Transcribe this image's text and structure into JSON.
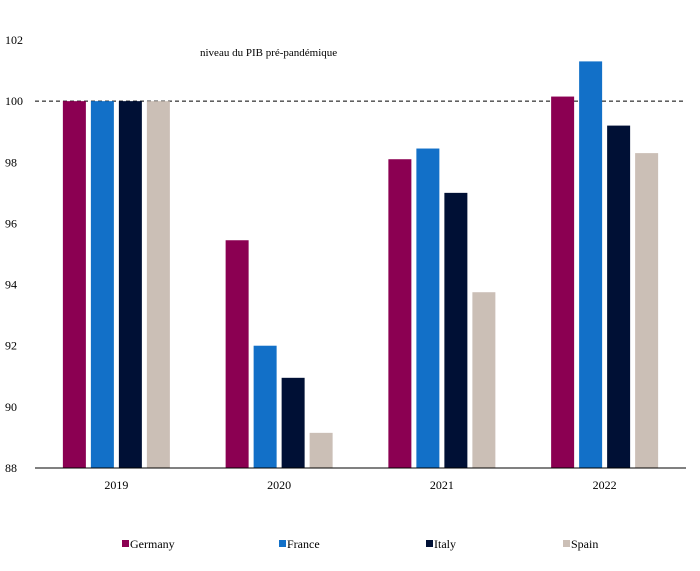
{
  "chart_data": {
    "type": "bar",
    "categories": [
      "2019",
      "2020",
      "2021",
      "2022"
    ],
    "series": [
      {
        "name": "Germany",
        "color": "#8b0052",
        "values": [
          100.0,
          95.45,
          98.1,
          100.15
        ]
      },
      {
        "name": "France",
        "color": "#1270c8",
        "values": [
          100.0,
          92.0,
          98.45,
          101.3
        ]
      },
      {
        "name": "Italy",
        "color": "#001035",
        "values": [
          100.0,
          90.95,
          97.0,
          99.2
        ]
      },
      {
        "name": "Spain",
        "color": "#cbbfb6",
        "values": [
          100.0,
          89.15,
          93.75,
          98.3
        ]
      }
    ],
    "ylim": [
      88,
      102
    ],
    "yticks": [
      88,
      90,
      92,
      94,
      96,
      98,
      100,
      102
    ],
    "reference_line": {
      "value": 100,
      "style": "dashed"
    },
    "annotation": "niveau du PIB pré-pandémique",
    "title": "",
    "xlabel": "",
    "ylabel": "",
    "grid": false,
    "legend_position": "bottom"
  }
}
